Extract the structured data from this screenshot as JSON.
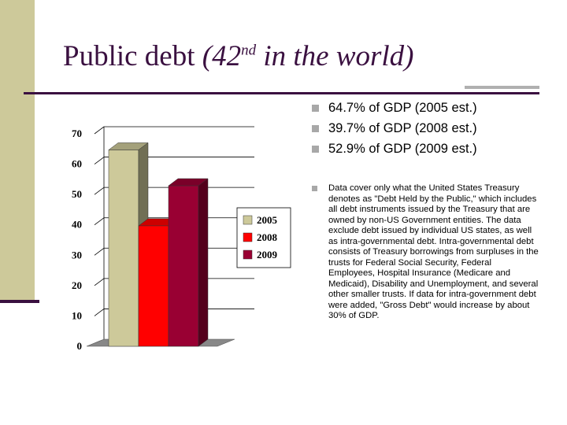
{
  "title": {
    "main": "Public debt ",
    "rank_prefix": "(42",
    "rank_suffix": "nd",
    "rank_rest": " in the world)"
  },
  "bullets": [
    "64.7% of GDP (2005 est.)",
    "39.7% of GDP (2008 est.)",
    "52.9% of GDP (2009 est.)"
  ],
  "note": "Data cover only what the United States Treasury denotes as \"Debt Held by the Public,\" which includes all debt instruments issued by the Treasury that are owned by non-US Government entities. The data exclude debt issued by individual US states, as well as intra-governmental debt. Intra-governmental debt consists of Treasury borrowings from surpluses in the trusts for Federal Social Security, Federal Employees, Hospital Insurance (Medicare and Medicaid), Disability and Unemployment, and several other smaller trusts. If data for intra-government debt were added, \"Gross Debt\" would increase by about 30% of GDP.",
  "colors": {
    "accent": "#3a1040",
    "stripe": "#cdc99a",
    "bullet": "#a8a8a8"
  },
  "chart_data": {
    "type": "bar",
    "style": "3d",
    "categories": [
      ""
    ],
    "series": [
      {
        "name": "2005",
        "values": [
          64.7
        ],
        "color": "#cdc99a"
      },
      {
        "name": "2008",
        "values": [
          39.7
        ],
        "color": "#ff0000"
      },
      {
        "name": "2009",
        "values": [
          52.9
        ],
        "color": "#990033"
      }
    ],
    "yticks": [
      "0",
      "10",
      "20",
      "30",
      "40",
      "50",
      "60",
      "70"
    ],
    "ylim": [
      0,
      70
    ],
    "grid": true,
    "legend": "right"
  }
}
